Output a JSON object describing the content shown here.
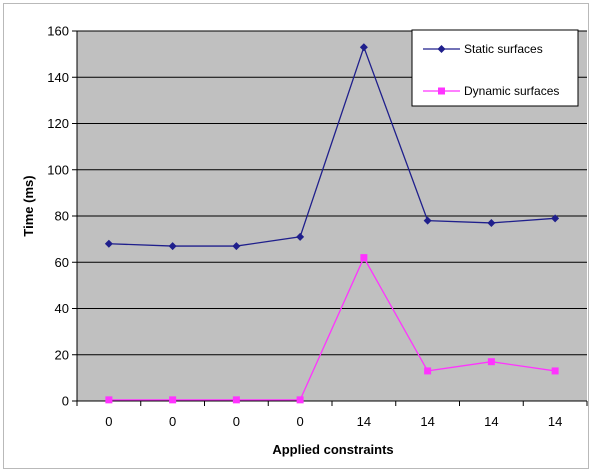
{
  "chart_data": {
    "type": "line",
    "title": "",
    "xlabel": "Applied constraints",
    "ylabel": "Time (ms)",
    "categories": [
      "0",
      "0",
      "0",
      "0",
      "14",
      "14",
      "14",
      "14"
    ],
    "ylim": [
      0,
      160
    ],
    "yticks": [
      0,
      20,
      40,
      60,
      80,
      100,
      120,
      140,
      160
    ],
    "ytick_labels": [
      "0",
      "20",
      "40",
      "60",
      "80",
      "100",
      "120",
      "140",
      "160"
    ],
    "grid": true,
    "legend_position": "top-right",
    "plot_background": "#c0c0c0",
    "series": [
      {
        "name": "Static surfaces",
        "color": "#1f1f8c",
        "marker": "diamond",
        "values": [
          68,
          67,
          67,
          71,
          153,
          78,
          77,
          79
        ]
      },
      {
        "name": "Dynamic surfaces",
        "color": "#ff33ff",
        "marker": "square",
        "values": [
          0.5,
          0.5,
          0.5,
          0.5,
          62,
          13,
          17,
          13
        ]
      }
    ]
  }
}
